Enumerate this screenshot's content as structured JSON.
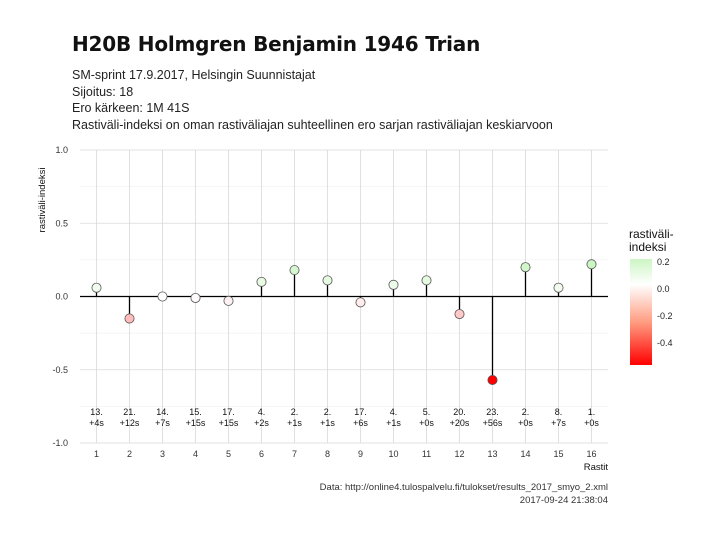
{
  "header": {
    "title": "H20B Holmgren Benjamin 1946 Trian",
    "subtitle_lines": [
      "SM-sprint 17.9.2017, Helsingin Suunnistajat",
      "Sijoitus: 18",
      "Ero kärkeen: 1M 41S",
      "Rastiväli-indeksi on oman rastiväliajan suhteellinen ero sarjan rastiväliajan keskiarvoon"
    ]
  },
  "caption": {
    "line1": "Data: http://online4.tulospalvelu.fi/tulokset/results_2017_smyo_2.xml",
    "line2": "2017-09-24 21:38:04"
  },
  "legend": {
    "title_line1": "rastiväli-",
    "title_line2": "indeksi",
    "ticks": [
      "0.2",
      "0.0",
      "-0.2",
      "-0.4"
    ]
  },
  "colors": {
    "low": "#ff0000",
    "mid": "#ffffff",
    "high": "#ccf5c4",
    "axis_line": "#000000",
    "grid": "#d9d9d9"
  },
  "chart_data": {
    "type": "scatter",
    "style": "lollipop",
    "xlabel": "Rastit",
    "ylabel": "rastiväli-indeksi",
    "xlim": [
      0.5,
      16.5
    ],
    "ylim": [
      -1.0,
      1.0
    ],
    "x_ticks": [
      "1",
      "2",
      "3",
      "4",
      "5",
      "6",
      "7",
      "8",
      "9",
      "10",
      "11",
      "12",
      "13",
      "14",
      "15",
      "16"
    ],
    "y_ticks": [
      "-1.0",
      "-0.5",
      "0.0",
      "0.5",
      "1.0"
    ],
    "grid": true,
    "legend_position": "right",
    "x": [
      1,
      2,
      3,
      4,
      5,
      6,
      7,
      8,
      9,
      10,
      11,
      12,
      13,
      14,
      15,
      16
    ],
    "y": [
      0.06,
      -0.15,
      0.0,
      -0.01,
      -0.03,
      0.1,
      0.18,
      0.11,
      -0.04,
      0.08,
      0.11,
      -0.12,
      -0.57,
      0.2,
      0.06,
      0.22
    ],
    "point_labels": [
      [
        "13.",
        "+4s"
      ],
      [
        "21.",
        "+12s"
      ],
      [
        "14.",
        "+7s"
      ],
      [
        "15.",
        "+15s"
      ],
      [
        "17.",
        "+15s"
      ],
      [
        "4.",
        "+2s"
      ],
      [
        "2.",
        "+1s"
      ],
      [
        "2.",
        "+1s"
      ],
      [
        "17.",
        "+6s"
      ],
      [
        "4.",
        "+1s"
      ],
      [
        "5.",
        "+0s"
      ],
      [
        "20.",
        "+20s"
      ],
      [
        "23.",
        "+56s"
      ],
      [
        "2.",
        "+0s"
      ],
      [
        "8.",
        "+7s"
      ],
      [
        "1.",
        "+0s"
      ]
    ]
  }
}
